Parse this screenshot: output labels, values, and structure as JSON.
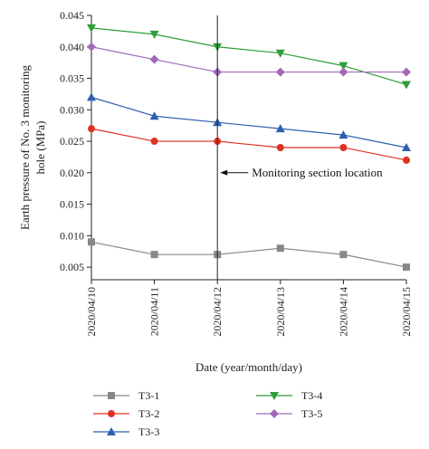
{
  "chart_data": {
    "type": "line",
    "xlabel": "Date (year/month/day)",
    "ylabel_lines": [
      "Earth pressure of No. 3 monitoring",
      "hole (MPa)"
    ],
    "categories": [
      "2020/04/10",
      "2020/04/11",
      "2020/04/12",
      "2020/04/13",
      "2020/04/14",
      "2020/04/15"
    ],
    "ylim": [
      0.003,
      0.045
    ],
    "yticks": [
      0.005,
      0.01,
      0.015,
      0.02,
      0.025,
      0.03,
      0.035,
      0.04,
      0.045
    ],
    "ytick_labels": [
      "0.005",
      "0.010",
      "0.015",
      "0.020",
      "0.025",
      "0.030",
      "0.035",
      "0.040",
      "0.045"
    ],
    "grid": false,
    "legend_position": "bottom",
    "annotation": {
      "text": "Monitoring section location",
      "x_category": "2020/04/12",
      "arrow_y": 0.02
    },
    "series": [
      {
        "name": "T3-1",
        "color": "#888888",
        "marker": "square",
        "values": [
          0.009,
          0.007,
          0.007,
          0.008,
          0.007,
          0.005
        ]
      },
      {
        "name": "T3-2",
        "color": "#dd3322",
        "marker": "circle",
        "values": [
          0.027,
          0.025,
          0.025,
          0.024,
          0.024,
          0.022
        ]
      },
      {
        "name": "T3-3",
        "color": "#2e5fb0",
        "marker": "triangle-up",
        "values": [
          0.032,
          0.029,
          0.028,
          0.027,
          0.026,
          0.024
        ]
      },
      {
        "name": "T3-4",
        "color": "#2e9e3a",
        "marker": "triangle-down",
        "values": [
          0.043,
          0.042,
          0.04,
          0.039,
          0.037,
          0.034
        ]
      },
      {
        "name": "T3-5",
        "color": "#a06ab8",
        "marker": "diamond",
        "values": [
          0.04,
          0.038,
          0.036,
          0.036,
          0.036,
          0.036
        ]
      }
    ]
  }
}
